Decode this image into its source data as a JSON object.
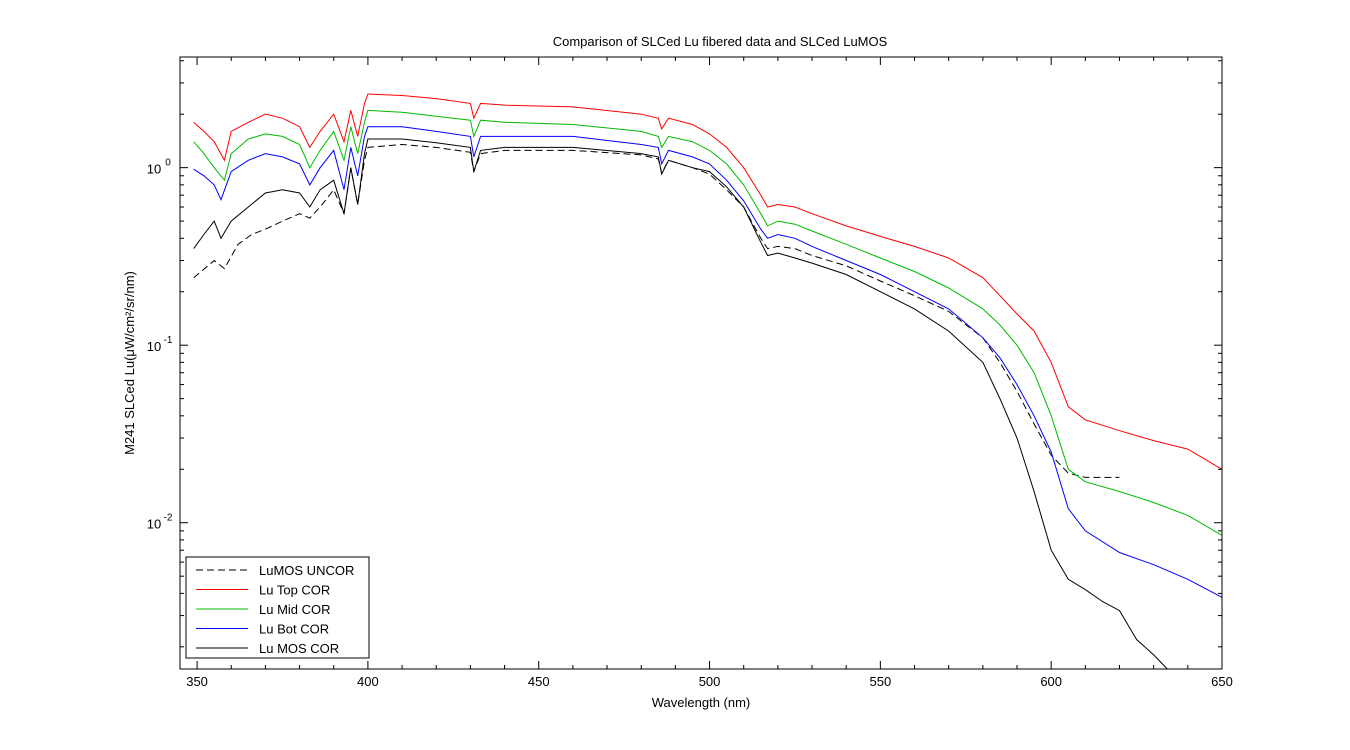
{
  "chart_data": {
    "type": "line",
    "title": "Comparison of SLCed Lu fibered data and SLCed LuMOS",
    "xlabel": "Wavelength (nm)",
    "ylabel": "M241 SLCed Lu(μW/cm²/sr/nm)",
    "xlim": [
      345,
      650
    ],
    "ylim": [
      0.0015,
      4.2
    ],
    "yscale": "log",
    "xticks": [
      350,
      400,
      450,
      500,
      550,
      600,
      650
    ],
    "xtick_labels": [
      "350",
      "400",
      "450",
      "500",
      "550",
      "600",
      "650"
    ],
    "yticks": [
      0.01,
      0.1,
      1
    ],
    "ytick_labels": [
      {
        "base": "10",
        "exp": "-2"
      },
      {
        "base": "10",
        "exp": "-1"
      },
      {
        "base": "10",
        "exp": "0"
      }
    ],
    "grid": false,
    "legend_position": "bottom-left",
    "series": [
      {
        "name": "LuMOS UNCOR",
        "color": "#000000",
        "dash": "dashed",
        "points": [
          [
            349,
            0.24
          ],
          [
            355,
            0.3
          ],
          [
            358,
            0.27
          ],
          [
            362,
            0.37
          ],
          [
            366,
            0.42
          ],
          [
            370,
            0.45
          ],
          [
            375,
            0.5
          ],
          [
            380,
            0.55
          ],
          [
            383,
            0.52
          ],
          [
            386,
            0.6
          ],
          [
            390,
            0.75
          ],
          [
            393,
            0.55
          ],
          [
            395,
            1.0
          ],
          [
            397,
            0.62
          ],
          [
            399,
            1.1
          ],
          [
            400,
            1.3
          ],
          [
            410,
            1.35
          ],
          [
            420,
            1.3
          ],
          [
            430,
            1.22
          ],
          [
            431,
            0.95
          ],
          [
            433,
            1.2
          ],
          [
            440,
            1.25
          ],
          [
            460,
            1.25
          ],
          [
            480,
            1.18
          ],
          [
            485,
            1.12
          ],
          [
            486,
            0.93
          ],
          [
            488,
            1.1
          ],
          [
            495,
            1.0
          ],
          [
            500,
            0.92
          ],
          [
            505,
            0.75
          ],
          [
            510,
            0.6
          ],
          [
            515,
            0.4
          ],
          [
            517,
            0.35
          ],
          [
            520,
            0.36
          ],
          [
            525,
            0.35
          ],
          [
            530,
            0.32
          ],
          [
            540,
            0.28
          ],
          [
            550,
            0.23
          ],
          [
            560,
            0.19
          ],
          [
            570,
            0.155
          ],
          [
            580,
            0.11
          ],
          [
            585,
            0.08
          ],
          [
            590,
            0.055
          ],
          [
            595,
            0.036
          ],
          [
            600,
            0.024
          ],
          [
            605,
            0.019
          ],
          [
            610,
            0.018
          ],
          [
            620,
            0.018
          ]
        ]
      },
      {
        "name": "Lu Top COR",
        "color": "#ff0000",
        "dash": "solid",
        "points": [
          [
            349,
            1.8
          ],
          [
            352,
            1.6
          ],
          [
            355,
            1.4
          ],
          [
            358,
            1.1
          ],
          [
            360,
            1.6
          ],
          [
            365,
            1.8
          ],
          [
            370,
            2.0
          ],
          [
            375,
            1.9
          ],
          [
            380,
            1.7
          ],
          [
            383,
            1.3
          ],
          [
            386,
            1.6
          ],
          [
            390,
            2.0
          ],
          [
            393,
            1.4
          ],
          [
            395,
            2.1
          ],
          [
            397,
            1.5
          ],
          [
            399,
            2.3
          ],
          [
            400,
            2.6
          ],
          [
            410,
            2.55
          ],
          [
            420,
            2.45
          ],
          [
            430,
            2.3
          ],
          [
            431,
            1.9
          ],
          [
            433,
            2.3
          ],
          [
            440,
            2.25
          ],
          [
            460,
            2.2
          ],
          [
            480,
            2.0
          ],
          [
            485,
            1.9
          ],
          [
            486,
            1.65
          ],
          [
            488,
            1.9
          ],
          [
            495,
            1.75
          ],
          [
            500,
            1.55
          ],
          [
            505,
            1.3
          ],
          [
            510,
            1.0
          ],
          [
            515,
            0.7
          ],
          [
            517,
            0.6
          ],
          [
            520,
            0.62
          ],
          [
            525,
            0.6
          ],
          [
            530,
            0.55
          ],
          [
            540,
            0.47
          ],
          [
            550,
            0.41
          ],
          [
            560,
            0.36
          ],
          [
            570,
            0.31
          ],
          [
            580,
            0.24
          ],
          [
            585,
            0.19
          ],
          [
            590,
            0.15
          ],
          [
            595,
            0.12
          ],
          [
            600,
            0.08
          ],
          [
            605,
            0.045
          ],
          [
            610,
            0.038
          ],
          [
            620,
            0.033
          ],
          [
            630,
            0.029
          ],
          [
            640,
            0.026
          ],
          [
            650,
            0.02
          ]
        ]
      },
      {
        "name": "Lu Mid COR",
        "color": "#00bb00",
        "dash": "solid",
        "points": [
          [
            349,
            1.4
          ],
          [
            352,
            1.2
          ],
          [
            355,
            1.0
          ],
          [
            358,
            0.85
          ],
          [
            360,
            1.2
          ],
          [
            365,
            1.45
          ],
          [
            370,
            1.55
          ],
          [
            375,
            1.5
          ],
          [
            380,
            1.35
          ],
          [
            383,
            1.0
          ],
          [
            386,
            1.25
          ],
          [
            390,
            1.6
          ],
          [
            393,
            1.1
          ],
          [
            395,
            1.7
          ],
          [
            397,
            1.2
          ],
          [
            399,
            1.8
          ],
          [
            400,
            2.1
          ],
          [
            410,
            2.05
          ],
          [
            420,
            1.95
          ],
          [
            430,
            1.85
          ],
          [
            431,
            1.5
          ],
          [
            433,
            1.85
          ],
          [
            440,
            1.8
          ],
          [
            460,
            1.75
          ],
          [
            480,
            1.6
          ],
          [
            485,
            1.5
          ],
          [
            486,
            1.3
          ],
          [
            488,
            1.5
          ],
          [
            495,
            1.4
          ],
          [
            500,
            1.25
          ],
          [
            505,
            1.05
          ],
          [
            510,
            0.8
          ],
          [
            515,
            0.55
          ],
          [
            517,
            0.47
          ],
          [
            520,
            0.5
          ],
          [
            525,
            0.48
          ],
          [
            530,
            0.44
          ],
          [
            540,
            0.37
          ],
          [
            550,
            0.31
          ],
          [
            560,
            0.26
          ],
          [
            570,
            0.21
          ],
          [
            580,
            0.16
          ],
          [
            585,
            0.13
          ],
          [
            590,
            0.1
          ],
          [
            595,
            0.07
          ],
          [
            600,
            0.04
          ],
          [
            605,
            0.02
          ],
          [
            610,
            0.017
          ],
          [
            620,
            0.015
          ],
          [
            630,
            0.013
          ],
          [
            640,
            0.011
          ],
          [
            650,
            0.0085
          ]
        ]
      },
      {
        "name": "Lu Bot COR",
        "color": "#0000ff",
        "dash": "solid",
        "points": [
          [
            349,
            0.98
          ],
          [
            352,
            0.9
          ],
          [
            355,
            0.8
          ],
          [
            357,
            0.66
          ],
          [
            360,
            0.95
          ],
          [
            365,
            1.1
          ],
          [
            370,
            1.2
          ],
          [
            375,
            1.15
          ],
          [
            380,
            1.05
          ],
          [
            383,
            0.8
          ],
          [
            386,
            1.0
          ],
          [
            390,
            1.25
          ],
          [
            393,
            0.75
          ],
          [
            395,
            1.3
          ],
          [
            397,
            0.9
          ],
          [
            399,
            1.5
          ],
          [
            400,
            1.7
          ],
          [
            410,
            1.7
          ],
          [
            420,
            1.6
          ],
          [
            430,
            1.5
          ],
          [
            431,
            1.15
          ],
          [
            433,
            1.5
          ],
          [
            440,
            1.5
          ],
          [
            460,
            1.5
          ],
          [
            480,
            1.35
          ],
          [
            485,
            1.3
          ],
          [
            486,
            1.05
          ],
          [
            488,
            1.25
          ],
          [
            495,
            1.15
          ],
          [
            500,
            1.05
          ],
          [
            505,
            0.85
          ],
          [
            510,
            0.65
          ],
          [
            515,
            0.45
          ],
          [
            517,
            0.4
          ],
          [
            520,
            0.42
          ],
          [
            525,
            0.4
          ],
          [
            530,
            0.36
          ],
          [
            540,
            0.3
          ],
          [
            550,
            0.25
          ],
          [
            560,
            0.2
          ],
          [
            570,
            0.16
          ],
          [
            580,
            0.11
          ],
          [
            585,
            0.085
          ],
          [
            590,
            0.06
          ],
          [
            595,
            0.04
          ],
          [
            600,
            0.025
          ],
          [
            605,
            0.012
          ],
          [
            610,
            0.009
          ],
          [
            620,
            0.0068
          ],
          [
            630,
            0.0058
          ],
          [
            640,
            0.0048
          ],
          [
            650,
            0.0038
          ]
        ]
      },
      {
        "name": "Lu MOS COR",
        "color": "#000000",
        "dash": "solid",
        "points": [
          [
            349,
            0.35
          ],
          [
            352,
            0.42
          ],
          [
            355,
            0.5
          ],
          [
            357,
            0.4
          ],
          [
            360,
            0.5
          ],
          [
            365,
            0.6
          ],
          [
            370,
            0.72
          ],
          [
            375,
            0.75
          ],
          [
            380,
            0.72
          ],
          [
            383,
            0.6
          ],
          [
            386,
            0.75
          ],
          [
            390,
            0.85
          ],
          [
            393,
            0.55
          ],
          [
            395,
            1.0
          ],
          [
            397,
            0.62
          ],
          [
            399,
            1.2
          ],
          [
            400,
            1.45
          ],
          [
            410,
            1.45
          ],
          [
            420,
            1.38
          ],
          [
            430,
            1.3
          ],
          [
            431,
            0.95
          ],
          [
            433,
            1.25
          ],
          [
            440,
            1.3
          ],
          [
            460,
            1.3
          ],
          [
            480,
            1.2
          ],
          [
            485,
            1.15
          ],
          [
            486,
            0.92
          ],
          [
            488,
            1.1
          ],
          [
            495,
            1.0
          ],
          [
            500,
            0.95
          ],
          [
            505,
            0.78
          ],
          [
            510,
            0.6
          ],
          [
            515,
            0.38
          ],
          [
            517,
            0.32
          ],
          [
            520,
            0.33
          ],
          [
            525,
            0.31
          ],
          [
            530,
            0.29
          ],
          [
            540,
            0.25
          ],
          [
            550,
            0.2
          ],
          [
            560,
            0.16
          ],
          [
            570,
            0.12
          ],
          [
            580,
            0.08
          ],
          [
            585,
            0.05
          ],
          [
            590,
            0.03
          ],
          [
            595,
            0.015
          ],
          [
            600,
            0.007
          ],
          [
            605,
            0.0048
          ],
          [
            610,
            0.0042
          ],
          [
            615,
            0.0036
          ],
          [
            620,
            0.0032
          ],
          [
            625,
            0.0022
          ],
          [
            630,
            0.0018
          ],
          [
            634,
            0.0015
          ]
        ]
      }
    ]
  }
}
